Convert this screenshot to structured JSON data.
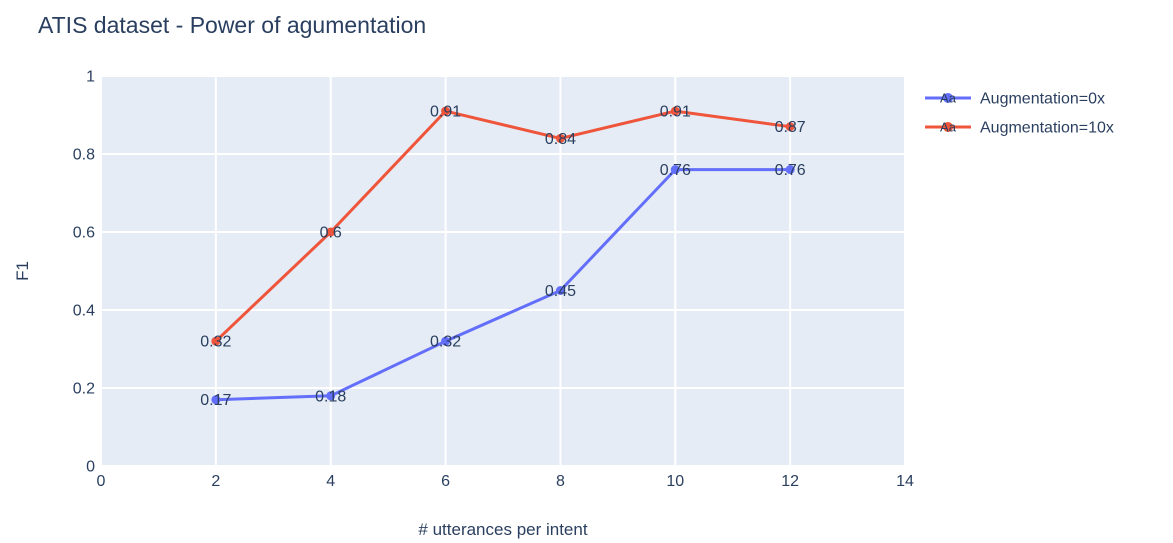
{
  "page": {
    "background": "#FFFFFF"
  },
  "chart_data": {
    "type": "line",
    "title": "ATIS dataset - Power of agumentation",
    "xlabel": "# utterances per intent",
    "ylabel": "F1",
    "x": [
      2,
      4,
      6,
      8,
      10,
      12
    ],
    "series": [
      {
        "name": "Augmentation=0x",
        "color": "#636EFA",
        "values": [
          0.17,
          0.18,
          0.32,
          0.45,
          0.76,
          0.76
        ],
        "labels": [
          "0.17",
          "0.18",
          "0.32",
          "0.45",
          "0.76",
          "0.76"
        ]
      },
      {
        "name": "Augmentation=10x",
        "color": "#EF553B",
        "values": [
          0.32,
          0.6,
          0.91,
          0.84,
          0.91,
          0.87
        ],
        "labels": [
          "0.32",
          "0.6",
          "0.91",
          "0.84",
          "0.91",
          "0.87"
        ]
      }
    ],
    "xlim": [
      0,
      14
    ],
    "ylim": [
      0,
      1
    ],
    "xticks": {
      "values": [
        0,
        2,
        4,
        6,
        8,
        10,
        12,
        14
      ],
      "labels": [
        "0",
        "2",
        "4",
        "6",
        "8",
        "10",
        "12",
        "14"
      ]
    },
    "yticks": {
      "values": [
        0,
        0.2,
        0.4,
        0.6,
        0.8,
        1
      ],
      "labels": [
        "0",
        "0.2",
        "0.4",
        "0.6",
        "0.8",
        "1"
      ]
    },
    "grid": true,
    "legend": {
      "position": "right",
      "marker_text": "Aa",
      "entries": [
        "Augmentation=0x",
        "Augmentation=10x"
      ]
    },
    "colors": {
      "plot_bg": "#E5ECF6",
      "grid": "#FFFFFF",
      "text": "#2A3F5F"
    }
  }
}
